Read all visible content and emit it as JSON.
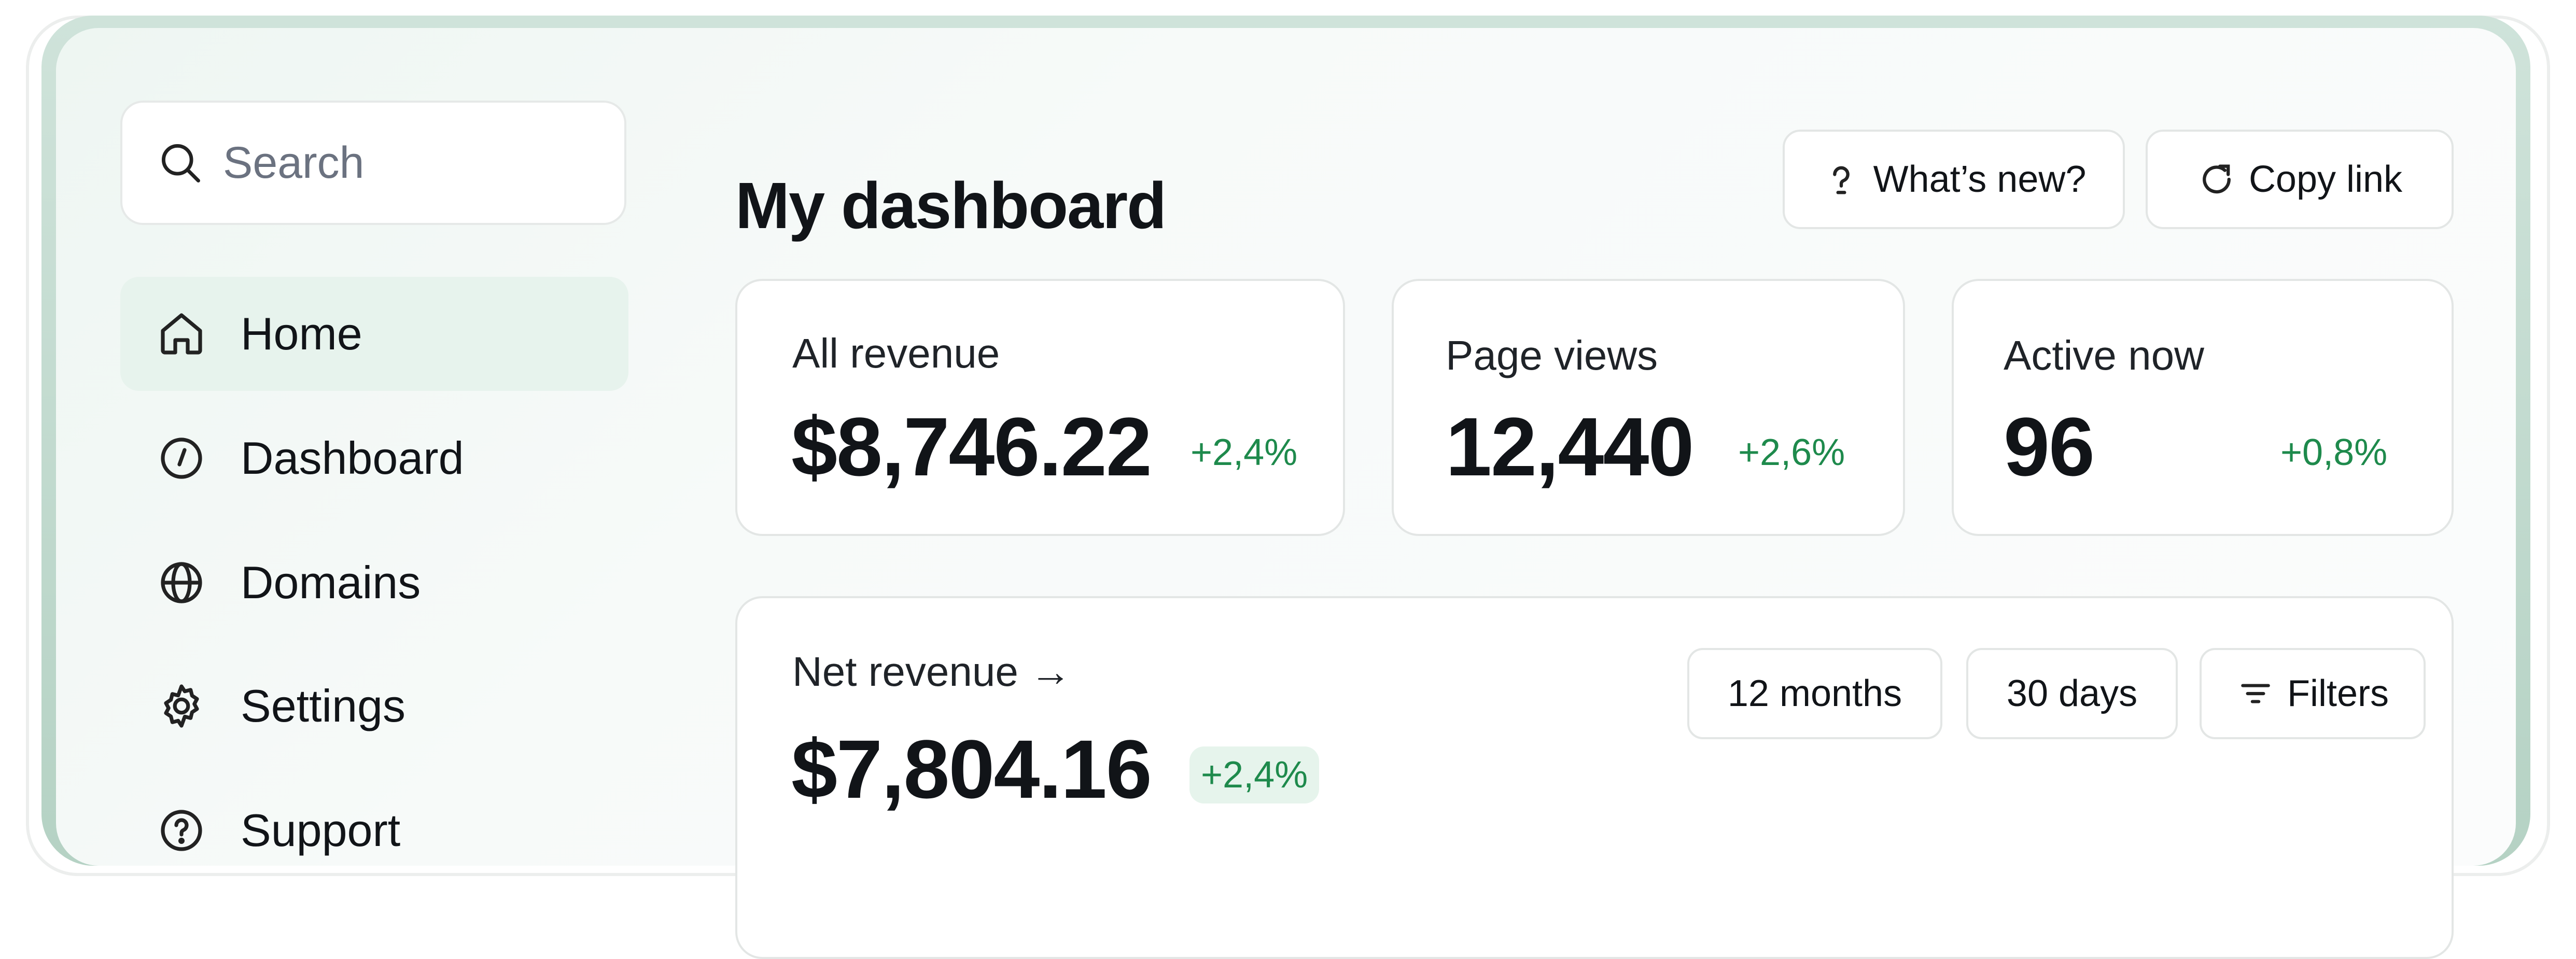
{
  "search": {
    "placeholder": "Search"
  },
  "sidebar": {
    "items": [
      {
        "label": "Home",
        "icon": "home-icon",
        "active": true
      },
      {
        "label": "Dashboard",
        "icon": "compass-icon"
      },
      {
        "label": "Domains",
        "icon": "globe-icon"
      },
      {
        "label": "Settings",
        "icon": "gear-icon"
      },
      {
        "label": "Support",
        "icon": "help-circle-icon"
      }
    ]
  },
  "header": {
    "title": "My dashboard",
    "whats_new_label": "What’s new?",
    "copy_link_label": "Copy link"
  },
  "stats": [
    {
      "label": "All revenue",
      "value": "$8,746.22",
      "delta": "+2,4%"
    },
    {
      "label": "Page views",
      "value": "12,440",
      "delta": "+2,6%"
    },
    {
      "label": "Active now",
      "value": "96",
      "delta": "+0,8%"
    }
  ],
  "net_revenue": {
    "label": "Net revenue →",
    "value": "$7,804.16",
    "delta": "+2,4%",
    "range_options": [
      "12 months",
      "30 days"
    ],
    "filters_label": "Filters"
  },
  "colors": {
    "accent_green": "#1e8a4c",
    "active_nav_bg": "#e7f3ed",
    "frame_green": "#b5d2c4"
  }
}
